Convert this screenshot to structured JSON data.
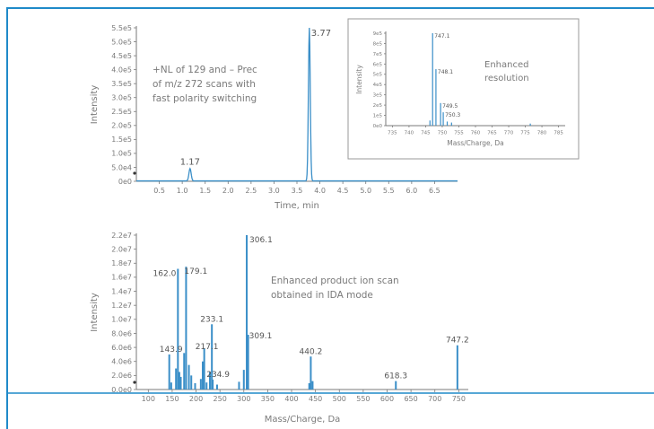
{
  "colors": {
    "frame": "#1f8ac9",
    "trace": "#3b8fc8",
    "axis": "#7a7a7a",
    "text": "#7a7a7a",
    "inset_border": "#9a9a9a"
  },
  "chart_data": [
    {
      "id": "tic",
      "type": "line",
      "xlabel": "Time, min",
      "ylabel": "Intensity",
      "xlim": [
        0,
        7.0
      ],
      "ylim": [
        0,
        560000
      ],
      "x_ticks": [
        "0.5",
        "1.0",
        "1.5",
        "2.0",
        "2.5",
        "3.0",
        "3.5",
        "4.0",
        "4.5",
        "5.0",
        "5.5",
        "6.0",
        "6.5"
      ],
      "y_ticks": [
        "0e0",
        "5.0e4",
        "1.0e5",
        "1.5e5",
        "2.0e5",
        "2.5e5",
        "3.0e5",
        "3.5e5",
        "4.0e5",
        "4.5e5",
        "5.0e5",
        "5.5e5"
      ],
      "peaks": [
        {
          "x": 1.17,
          "y": 45000,
          "width": 0.06,
          "label": "1.17"
        },
        {
          "x": 3.77,
          "y": 560000,
          "width": 0.05,
          "label": "3.77"
        }
      ],
      "annotation": [
        "+NL of 129 and – Prec",
        "of m/z 272 scans with",
        "fast polarity switching"
      ]
    },
    {
      "id": "inset",
      "type": "bar",
      "xlabel": "Mass/Charge, Da",
      "ylabel": "Intensity",
      "xlim": [
        733,
        787
      ],
      "ylim": [
        0,
        9
      ],
      "x_ticks": [
        "735",
        "740",
        "745",
        "750",
        "755",
        "760",
        "765",
        "770",
        "775",
        "780",
        "785"
      ],
      "y_ticks": [
        "0e0",
        "1e5",
        "2e5",
        "3e5",
        "4e5",
        "5e5",
        "6e5",
        "7e5",
        "8e5",
        "9e5"
      ],
      "peaks": [
        {
          "x": 747.1,
          "y": 9.0,
          "label": "747.1"
        },
        {
          "x": 748.1,
          "y": 5.5,
          "label": "748.1"
        },
        {
          "x": 749.5,
          "y": 2.2,
          "label": "749.5"
        },
        {
          "x": 750.3,
          "y": 1.3,
          "label": "750.3"
        },
        {
          "x": 746.3,
          "y": 0.5
        },
        {
          "x": 751.5,
          "y": 0.4
        },
        {
          "x": 752.8,
          "y": 0.3
        },
        {
          "x": 776.5,
          "y": 0.2
        }
      ],
      "annotation": [
        "Enhanced",
        "resolution"
      ]
    },
    {
      "id": "epi",
      "type": "bar",
      "xlabel": "Mass/Charge, Da",
      "ylabel": "Intensity",
      "xlim": [
        75,
        770
      ],
      "ylim": [
        0,
        22000000
      ],
      "x_ticks": [
        "100",
        "150",
        "200",
        "250",
        "300",
        "350",
        "400",
        "450",
        "500",
        "550",
        "600",
        "650",
        "700",
        "750"
      ],
      "y_ticks": [
        "0.0e0",
        "2.0e6",
        "4.0e6",
        "6.0e6",
        "8.0e6",
        "1.0e7",
        "1.2e7",
        "1.4e7",
        "1.6e7",
        "1.8e7",
        "2.0e7",
        "2.2e7"
      ],
      "peaks": [
        {
          "x": 306.1,
          "y": 22000000,
          "label": "306.1"
        },
        {
          "x": 179.1,
          "y": 17500000,
          "label": "179.1"
        },
        {
          "x": 162.0,
          "y": 17200000,
          "label": "162.0"
        },
        {
          "x": 233.1,
          "y": 9300000,
          "label": "233.1"
        },
        {
          "x": 309.1,
          "y": 7800000,
          "label": "309.1"
        },
        {
          "x": 440.2,
          "y": 4700000,
          "label": "440.2"
        },
        {
          "x": 747.2,
          "y": 6300000,
          "label": "747.2"
        },
        {
          "x": 143.9,
          "y": 5000000,
          "label": "143.9"
        },
        {
          "x": 217.1,
          "y": 5900000,
          "label": "217.1"
        },
        {
          "x": 234.9,
          "y": 1400000,
          "label": "234.9"
        },
        {
          "x": 618.3,
          "y": 1200000,
          "label": "618.3"
        },
        {
          "x": 148.0,
          "y": 1000000
        },
        {
          "x": 158.0,
          "y": 3000000
        },
        {
          "x": 165.0,
          "y": 2500000
        },
        {
          "x": 168.0,
          "y": 1800000
        },
        {
          "x": 175.0,
          "y": 5200000
        },
        {
          "x": 185.0,
          "y": 3500000
        },
        {
          "x": 190.0,
          "y": 2000000
        },
        {
          "x": 198.0,
          "y": 900000
        },
        {
          "x": 210.0,
          "y": 1500000
        },
        {
          "x": 214.0,
          "y": 4000000
        },
        {
          "x": 222.0,
          "y": 1000000
        },
        {
          "x": 229.0,
          "y": 2500000
        },
        {
          "x": 244.0,
          "y": 700000
        },
        {
          "x": 290.0,
          "y": 1100000
        },
        {
          "x": 300.0,
          "y": 2800000
        },
        {
          "x": 437.0,
          "y": 900000
        },
        {
          "x": 444.0,
          "y": 1200000
        }
      ],
      "annotation": [
        "Enhanced product ion scan",
        "obtained in IDA mode"
      ]
    }
  ]
}
